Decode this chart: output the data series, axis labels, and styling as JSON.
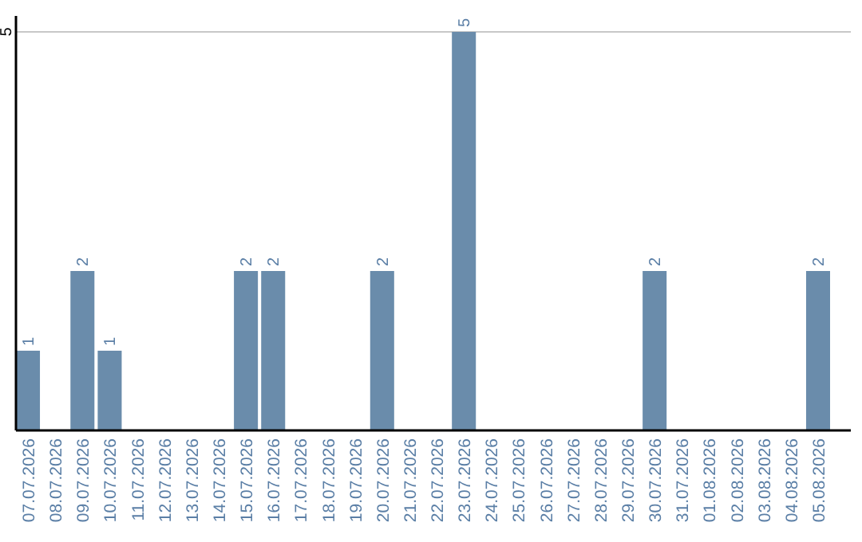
{
  "chart_data": {
    "type": "bar",
    "categories": [
      "07.07.2026",
      "08.07.2026",
      "09.07.2026",
      "10.07.2026",
      "11.07.2026",
      "12.07.2026",
      "13.07.2026",
      "14.07.2026",
      "15.07.2026",
      "16.07.2026",
      "17.07.2026",
      "18.07.2026",
      "19.07.2026",
      "20.07.2026",
      "21.07.2026",
      "22.07.2026",
      "23.07.2026",
      "24.07.2026",
      "25.07.2026",
      "26.07.2026",
      "27.07.2026",
      "28.07.2026",
      "29.07.2026",
      "30.07.2026",
      "31.07.2026",
      "01.08.2026",
      "02.08.2026",
      "03.08.2026",
      "04.08.2026",
      "05.08.2026"
    ],
    "values": [
      1,
      0,
      2,
      1,
      0,
      0,
      0,
      0,
      2,
      2,
      0,
      0,
      0,
      2,
      0,
      0,
      5,
      0,
      0,
      0,
      0,
      0,
      0,
      2,
      0,
      0,
      0,
      0,
      0,
      2
    ],
    "value_labels": [
      "1",
      null,
      "2",
      "1",
      null,
      null,
      null,
      null,
      "2",
      "2",
      null,
      null,
      null,
      "2",
      null,
      null,
      "5",
      null,
      null,
      null,
      null,
      null,
      null,
      "2",
      null,
      null,
      null,
      null,
      null,
      "2"
    ],
    "color": "#6a8cab",
    "ylim": [
      0,
      5
    ],
    "yticks": [
      5
    ],
    "ref_lines": [
      {
        "axis": "y",
        "value": 5,
        "color": "#c8c8c8"
      }
    ]
  }
}
